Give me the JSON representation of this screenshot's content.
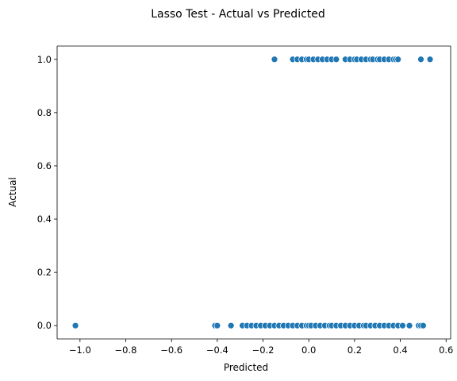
{
  "chart_data": {
    "type": "scatter",
    "title": "Lasso Test - Actual vs Predicted",
    "xlabel": "Predicted",
    "ylabel": "Actual",
    "xlim": [
      -1.1,
      0.62
    ],
    "ylim": [
      -0.05,
      1.05
    ],
    "xticks": [
      -1.0,
      -0.8,
      -0.6,
      -0.4,
      -0.2,
      0.0,
      0.2,
      0.4,
      0.6
    ],
    "xtick_labels": [
      "−1.0",
      "−0.8",
      "−0.6",
      "−0.4",
      "−0.2",
      "0.0",
      "0.2",
      "0.4",
      "0.6"
    ],
    "yticks": [
      0.0,
      0.2,
      0.4,
      0.6,
      0.8,
      1.0
    ],
    "ytick_labels": [
      "0.0",
      "0.2",
      "0.4",
      "0.6",
      "0.8",
      "1.0"
    ],
    "grid": false,
    "marker_color": "#1f77b4",
    "series": [
      {
        "x": [
          -0.15,
          -0.07,
          -0.05,
          -0.03,
          -0.01,
          0.0,
          0.02,
          0.04,
          0.06,
          0.08,
          0.1,
          0.12,
          0.16,
          0.18,
          0.2,
          0.21,
          0.23,
          0.25,
          0.27,
          0.28,
          0.3,
          0.31,
          0.33,
          0.35,
          0.37,
          0.38,
          0.39,
          0.49,
          0.53
        ],
        "y": [
          1,
          1,
          1,
          1,
          1,
          1,
          1,
          1,
          1,
          1,
          1,
          1,
          1,
          1,
          1,
          1,
          1,
          1,
          1,
          1,
          1,
          1,
          1,
          1,
          1,
          1,
          1,
          1,
          1
        ]
      },
      {
        "x": [
          -1.02,
          -0.41,
          -0.4,
          -0.34,
          -0.29,
          -0.27,
          -0.25,
          -0.23,
          -0.21,
          -0.19,
          -0.17,
          -0.15,
          -0.13,
          -0.11,
          -0.09,
          -0.07,
          -0.05,
          -0.03,
          -0.01,
          0.0,
          0.01,
          0.03,
          0.05,
          0.07,
          0.09,
          0.1,
          0.12,
          0.14,
          0.16,
          0.18,
          0.2,
          0.22,
          0.24,
          0.25,
          0.27,
          0.29,
          0.31,
          0.33,
          0.35,
          0.37,
          0.39,
          0.41,
          0.44,
          0.48,
          0.49,
          0.5
        ],
        "y": [
          0,
          0,
          0,
          0,
          0,
          0,
          0,
          0,
          0,
          0,
          0,
          0,
          0,
          0,
          0,
          0,
          0,
          0,
          0,
          0,
          0,
          0,
          0,
          0,
          0,
          0,
          0,
          0,
          0,
          0,
          0,
          0,
          0,
          0,
          0,
          0,
          0,
          0,
          0,
          0,
          0,
          0,
          0,
          0,
          0,
          0
        ]
      }
    ]
  }
}
